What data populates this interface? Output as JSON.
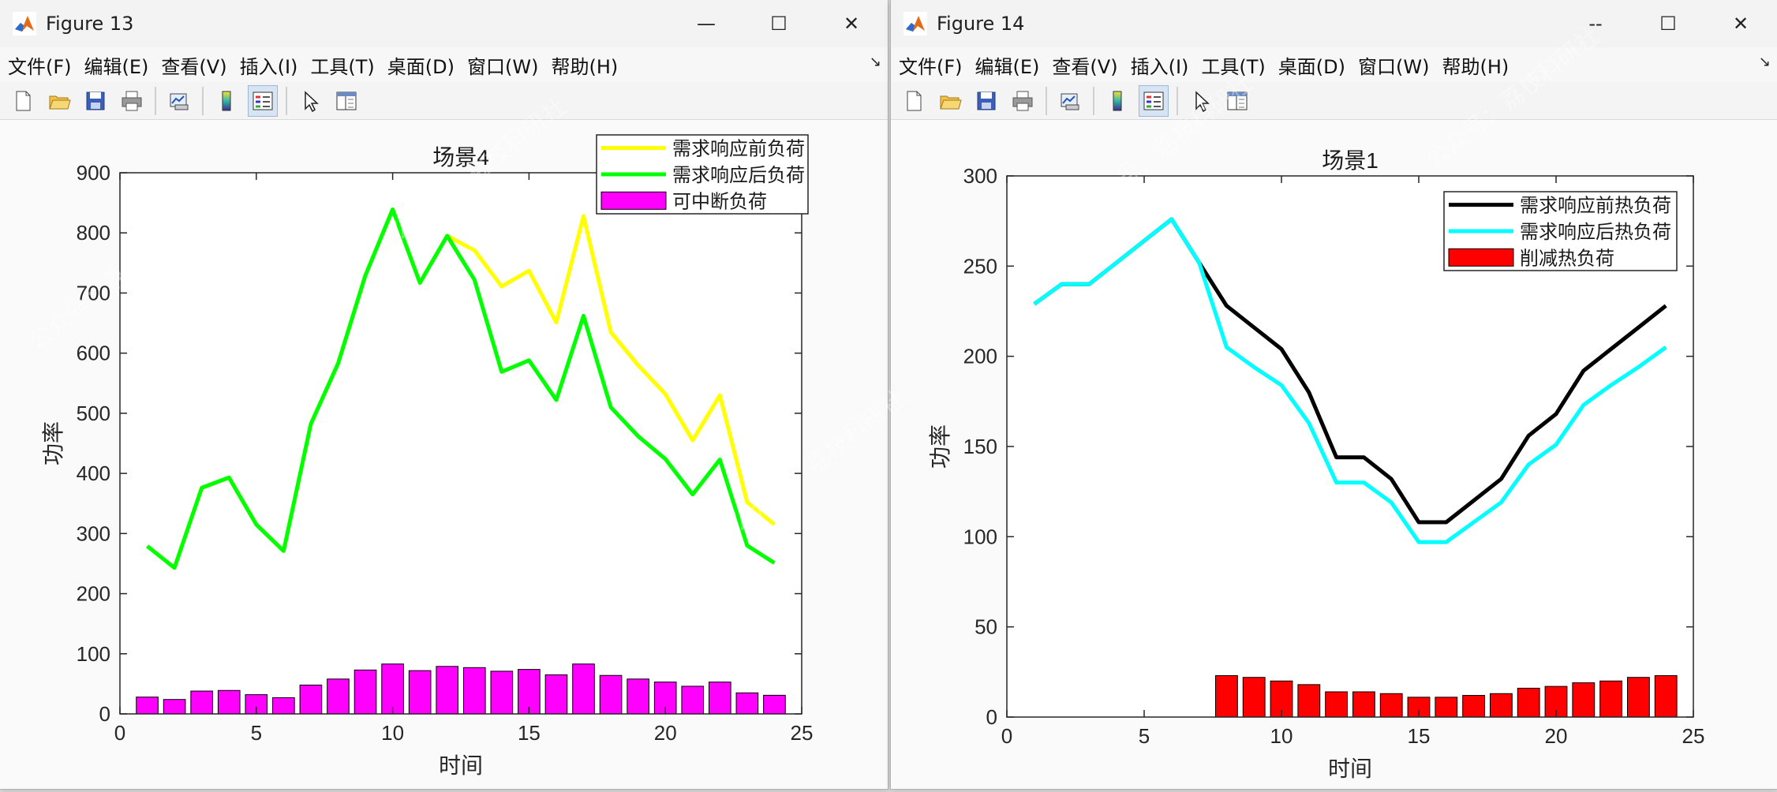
{
  "windows": [
    {
      "id": "w13",
      "title": "Figure 13",
      "controls": {
        "minimize": "—",
        "maximize": "☐",
        "close": "✕"
      },
      "menu": [
        "文件(F)",
        "编辑(E)",
        "查看(V)",
        "插入(I)",
        "工具(T)",
        "桌面(D)",
        "窗口(W)",
        "帮助(H)"
      ]
    },
    {
      "id": "w14",
      "title": "Figure 14",
      "controls": {
        "minimize": "--",
        "maximize": "☐",
        "close": "✕"
      },
      "menu": [
        "文件(F)",
        "编辑(E)",
        "查看(V)",
        "插入(I)",
        "工具(T)",
        "桌面(D)",
        "窗口(W)",
        "帮助(H)"
      ]
    }
  ],
  "toolbar_icons": [
    "new-figure-icon",
    "open-file-icon",
    "save-icon",
    "print-icon",
    "link-plot-icon",
    "colorbar-icon",
    "legend-icon",
    "pointer-icon",
    "property-inspector-icon"
  ],
  "watermark_text": "公众号：荔枝科研社",
  "chart_data": [
    {
      "type": "line",
      "title": "场景4",
      "xlabel": "时间",
      "ylabel": "功率",
      "xlim": [
        0,
        25
      ],
      "ylim": [
        0,
        900
      ],
      "xticks": [
        0,
        5,
        10,
        15,
        20,
        25
      ],
      "yticks": [
        0,
        100,
        200,
        300,
        400,
        500,
        600,
        700,
        800,
        900
      ],
      "legend_position": "top-right",
      "x": [
        1,
        2,
        3,
        4,
        5,
        6,
        7,
        8,
        9,
        10,
        11,
        12,
        13,
        14,
        15,
        16,
        17,
        18,
        19,
        20,
        21,
        22,
        23,
        24
      ],
      "series": [
        {
          "name": "需求响应前负荷",
          "kind": "line",
          "color": "#ffff00",
          "values": [
            279,
            243,
            376,
            393,
            315,
            271,
            482,
            583,
            729,
            839,
            717,
            795,
            771,
            711,
            737,
            651,
            828,
            635,
            580,
            532,
            455,
            530,
            352,
            315
          ]
        },
        {
          "name": "需求响应后负荷",
          "kind": "line",
          "color": "#00ff00",
          "values": [
            279,
            243,
            376,
            393,
            315,
            271,
            482,
            583,
            729,
            839,
            717,
            795,
            722,
            569,
            588,
            522,
            662,
            510,
            462,
            424,
            365,
            423,
            280,
            251
          ]
        },
        {
          "name": "可中断负荷",
          "kind": "bar",
          "color": "#ff00ff",
          "values": [
            28,
            24,
            38,
            39,
            32,
            27,
            48,
            58,
            73,
            83,
            72,
            79,
            77,
            71,
            74,
            65,
            83,
            64,
            58,
            53,
            46,
            53,
            35,
            31
          ]
        }
      ]
    },
    {
      "type": "line",
      "title": "场景1",
      "xlabel": "时间",
      "ylabel": "功率",
      "xlim": [
        0,
        25
      ],
      "ylim": [
        0,
        300
      ],
      "xticks": [
        0,
        5,
        10,
        15,
        20,
        25
      ],
      "yticks": [
        0,
        50,
        100,
        150,
        200,
        250,
        300
      ],
      "legend_position": "top-right",
      "x": [
        1,
        2,
        3,
        4,
        5,
        6,
        7,
        8,
        9,
        10,
        11,
        12,
        13,
        14,
        15,
        16,
        17,
        18,
        19,
        20,
        21,
        22,
        23,
        24
      ],
      "series": [
        {
          "name": "需求响应前热负荷",
          "kind": "line",
          "color": "#000000",
          "values": [
            229,
            240,
            240,
            252,
            264,
            276,
            252,
            228,
            216,
            204,
            180,
            144,
            144,
            132,
            108,
            108,
            120,
            132,
            156,
            168,
            192,
            204,
            216,
            228
          ]
        },
        {
          "name": "需求响应后热负荷",
          "kind": "line",
          "color": "#00ffff",
          "values": [
            229,
            240,
            240,
            252,
            264,
            276,
            252,
            205,
            194,
            184,
            163,
            130,
            130,
            119,
            97,
            97,
            108,
            119,
            140,
            151,
            173,
            184,
            194,
            205
          ]
        },
        {
          "name": "削减热负荷",
          "kind": "bar",
          "color": "#ff0000",
          "values": [
            0,
            0,
            0,
            0,
            0,
            0,
            0,
            23,
            22,
            20,
            18,
            14,
            14,
            13,
            11,
            11,
            12,
            13,
            16,
            17,
            19,
            20,
            22,
            23
          ]
        }
      ]
    }
  ]
}
